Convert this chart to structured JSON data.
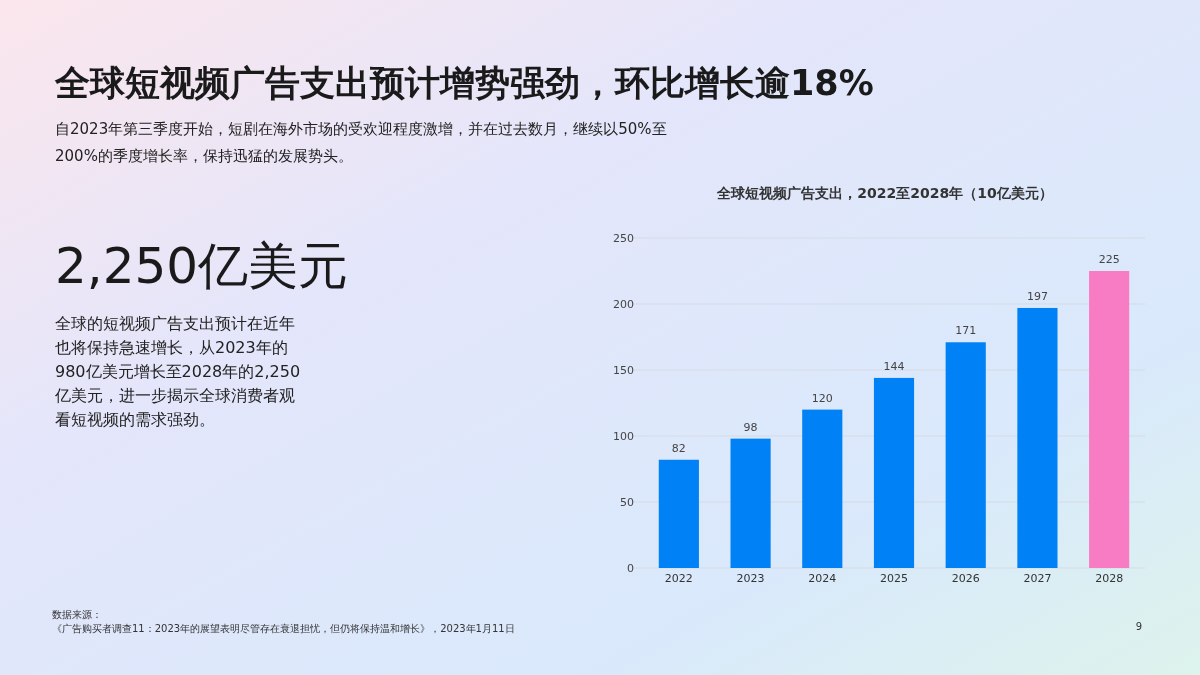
{
  "chart_data": {
    "type": "bar",
    "title": "全球短视频广告支出预计增势强劲，环比增长逾18%",
    "subtitle": "自2023年第三季度开始，短剧在海外市场的受欢迎程度激增，并在过去数月，继续以50%至200%的季度增长率，保持迅猛的发展势头。",
    "annotations": [
      "全球短视频广告支出，2022至2028年（10亿美元）",
      "2,250亿美元",
      "全球的短视频广告支出预计在近年也将保持急速增长，从2023年的980亿美元增长至2028年的2,250亿美元，进一步揭示全球消费者观看短视频的需求强劲。",
      "数据来源：",
      "《广告购买者调查11：2023年的展望表明尽管存在衰退担忧，但仍将保持温和增长》，2023年1月11日",
      "9"
    ],
    "categories": [
      "2022",
      "2023",
      "2024",
      "2025",
      "2026",
      "2027",
      "2028"
    ],
    "values": [
      82,
      98,
      120,
      144,
      171,
      197,
      225
    ],
    "colors": [
      "#0082f6",
      "#0082f6",
      "#0082f6",
      "#0082f6",
      "#0082f6",
      "#0082f6",
      "#f87cc4"
    ],
    "ylim": [
      0,
      250
    ],
    "yticks": [
      0,
      50,
      100,
      150,
      200,
      250
    ],
    "grid": "y",
    "data_labels": true
  }
}
